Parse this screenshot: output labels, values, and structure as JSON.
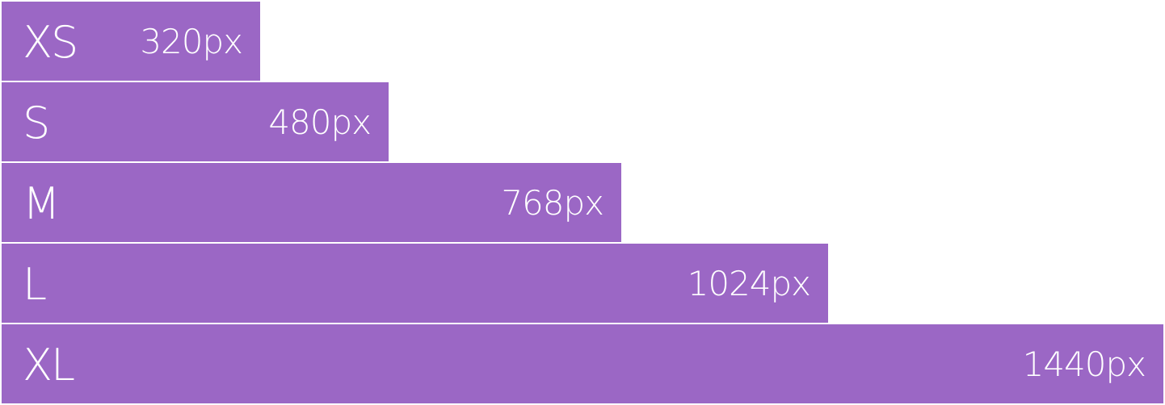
{
  "chart_data": {
    "type": "bar",
    "orientation": "horizontal",
    "categories": [
      "XS",
      "S",
      "M",
      "L",
      "XL"
    ],
    "values": [
      320,
      480,
      768,
      1024,
      1440
    ],
    "value_labels": [
      "320px",
      "480px",
      "768px",
      "1024px",
      "1440px"
    ],
    "unit": "px",
    "xlim": [
      0,
      1440
    ],
    "grid": false,
    "legend": "none",
    "bar_color": "#9b67c5",
    "text_color": "#ffffff",
    "background": "#ffffff"
  }
}
